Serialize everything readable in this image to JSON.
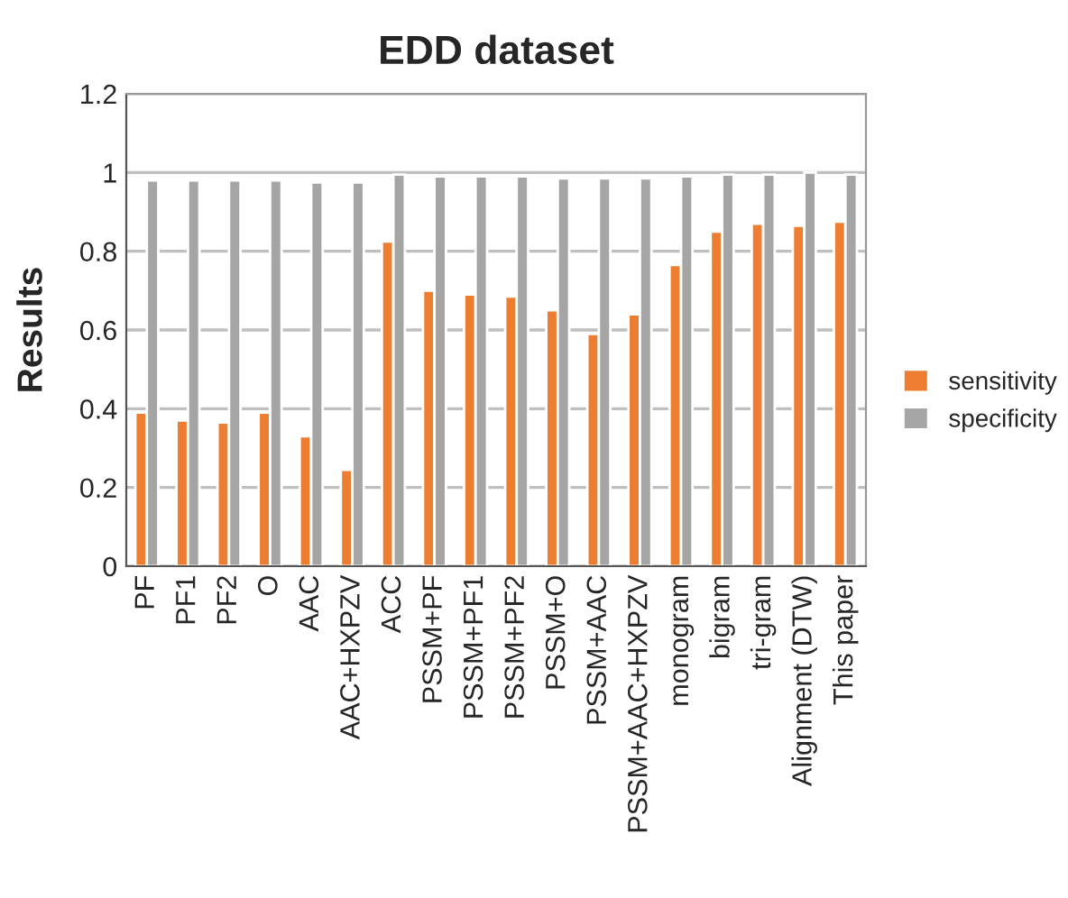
{
  "chart_data": {
    "type": "bar",
    "title": "EDD dataset",
    "ylabel": "Results",
    "categories": [
      "PF",
      "PF1",
      "PF2",
      "O",
      "AAC",
      "AAC+HXPZV",
      "ACC",
      "PSSM+PF",
      "PSSM+PF1",
      "PSSM+PF2",
      "PSSM+O",
      "PSSM+AAC",
      "PSSM+AAC+HXPZV",
      "monogram",
      "bigram",
      "tri-gram",
      "Alignment (DTW)",
      "This paper"
    ],
    "series": [
      {
        "name": "sensitivity",
        "color": "#ed7d31",
        "values": [
          0.39,
          0.37,
          0.365,
          0.39,
          0.33,
          0.245,
          0.825,
          0.7,
          0.69,
          0.685,
          0.65,
          0.59,
          0.64,
          0.765,
          0.85,
          0.87,
          0.865,
          0.875
        ]
      },
      {
        "name": "specificity",
        "color": "#a5a5a5",
        "values": [
          0.98,
          0.98,
          0.98,
          0.98,
          0.975,
          0.975,
          0.995,
          0.99,
          0.99,
          0.99,
          0.985,
          0.985,
          0.985,
          0.99,
          0.995,
          0.995,
          1.0,
          0.995
        ]
      }
    ],
    "ylim": [
      0,
      1.2
    ],
    "yticks": [
      0,
      0.2,
      0.4,
      0.6,
      0.8,
      1,
      1.2
    ],
    "grid": "y",
    "legend": "right"
  }
}
